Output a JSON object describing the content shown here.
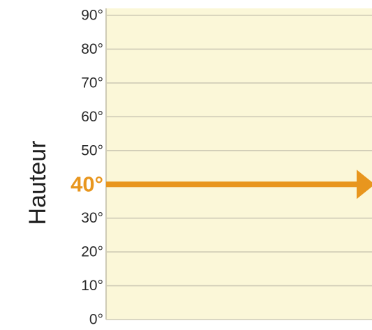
{
  "chart_data": {
    "type": "line",
    "ylabel": "Hauteur",
    "xlabel": "",
    "title": "",
    "ylim": [
      0,
      90
    ],
    "y_ticks": [
      {
        "value": 0,
        "label": "0°"
      },
      {
        "value": 10,
        "label": "10°"
      },
      {
        "value": 20,
        "label": "20°"
      },
      {
        "value": 30,
        "label": "30°"
      },
      {
        "value": 40,
        "label": "40°"
      },
      {
        "value": 50,
        "label": "50°"
      },
      {
        "value": 60,
        "label": "60°"
      },
      {
        "value": 70,
        "label": "70°"
      },
      {
        "value": 80,
        "label": "80°"
      },
      {
        "value": 90,
        "label": "90°"
      }
    ],
    "highlight": {
      "value": 40,
      "label": "40°",
      "style": "arrow-right"
    },
    "grid": true
  },
  "colors": {
    "panel_fill": "#fbf7d8",
    "grid_line": "#cfcbb6",
    "highlight": "#e8961e",
    "tick_text": "#2b2b2b",
    "axis_title": "#1e1e1e"
  }
}
